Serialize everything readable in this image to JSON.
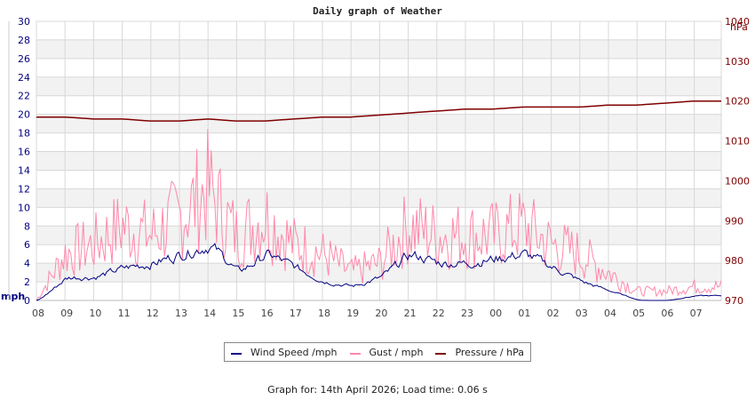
{
  "title": "Daily graph of Weather",
  "footer": "Graph for: 14th April 2026; Load time: 0.06 s",
  "legend": [
    {
      "label": "Wind Speed /mph",
      "color": "#000080"
    },
    {
      "label": "Gust / mph",
      "color": "#ff88aa"
    },
    {
      "label": "Pressure / hPa",
      "color": "#800000"
    }
  ],
  "chart_data": {
    "type": "line",
    "title": "Daily graph of Weather",
    "xlabel": "",
    "ylabel_left": "mph",
    "ylabel_right": "hPa",
    "ylim_left": [
      0,
      30
    ],
    "ylim_right": [
      970,
      1040
    ],
    "left_ticks": [
      0,
      2,
      4,
      6,
      8,
      10,
      12,
      14,
      16,
      18,
      20,
      22,
      24,
      26,
      28,
      30
    ],
    "right_ticks": [
      970,
      980,
      990,
      1000,
      1010,
      1020,
      1030,
      1040
    ],
    "x": [
      "08",
      "09",
      "10",
      "11",
      "12",
      "13",
      "14",
      "15",
      "16",
      "17",
      "18",
      "19",
      "20",
      "21",
      "22",
      "23",
      "00",
      "01",
      "02",
      "03",
      "04",
      "05",
      "06",
      "07"
    ],
    "grid": true,
    "legend_position": "bottom",
    "series": [
      {
        "name": "Wind Speed /mph",
        "axis": "left",
        "color": "#000080",
        "values": [
          0,
          2.5,
          2.5,
          3.5,
          4,
          5,
          6,
          3,
          5,
          3.5,
          2,
          1.5,
          2.5,
          5,
          4,
          4,
          4.5,
          5,
          3.5,
          2,
          1,
          0,
          0,
          0.5
        ]
      },
      {
        "name": "Gust / mph",
        "axis": "left",
        "color": "#ff88aa",
        "values": [
          0,
          5,
          6,
          8,
          7,
          9,
          12,
          7,
          9,
          6,
          5,
          3,
          4,
          8,
          7,
          7,
          7,
          8,
          6,
          5,
          3,
          1,
          1,
          1.5
        ]
      },
      {
        "name": "Pressure / hPa",
        "axis": "right",
        "color": "#800000",
        "values": [
          1016,
          1016,
          1015.5,
          1015.5,
          1015,
          1015,
          1015.5,
          1015,
          1015,
          1015.5,
          1016,
          1016,
          1016.5,
          1017,
          1017.5,
          1018,
          1018,
          1018.5,
          1018.5,
          1018.5,
          1019,
          1019,
          1019.5,
          1020
        ]
      }
    ]
  }
}
